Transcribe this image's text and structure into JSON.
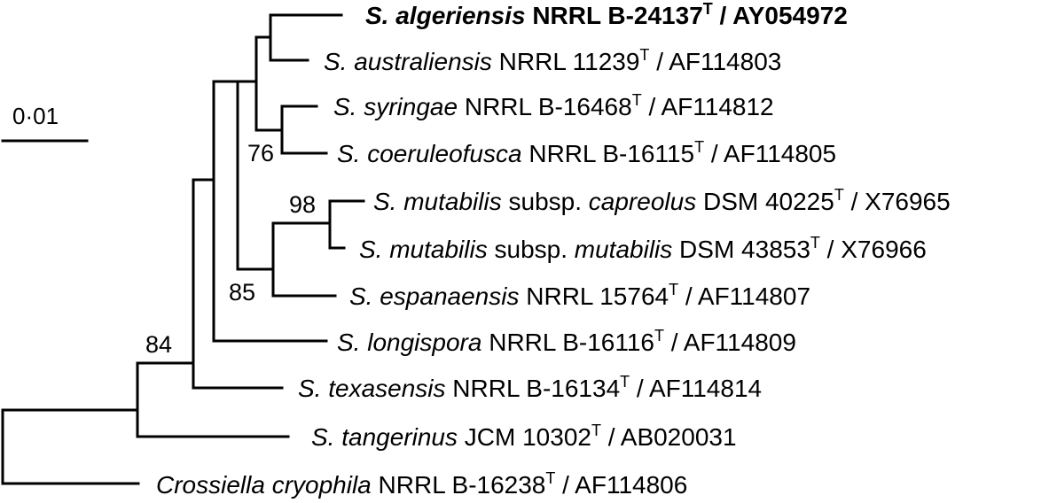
{
  "scale_bar": {
    "label": "0·01"
  },
  "leaves": [
    {
      "segments": [
        {
          "text": "S. algeriensis",
          "italic": true
        },
        {
          "text": " NRRL B-24137"
        },
        {
          "text": "T",
          "sup": true
        },
        {
          "text": " / AY054972"
        }
      ],
      "bold": true
    },
    {
      "segments": [
        {
          "text": "S. australiensis",
          "italic": true
        },
        {
          "text": " NRRL 11239"
        },
        {
          "text": "T",
          "sup": true
        },
        {
          "text": " / AF114803"
        }
      ]
    },
    {
      "segments": [
        {
          "text": "S. syringae",
          "italic": true
        },
        {
          "text": " NRRL B-16468"
        },
        {
          "text": "T",
          "sup": true
        },
        {
          "text": " / AF114812"
        }
      ]
    },
    {
      "segments": [
        {
          "text": "S. coeruleofusca",
          "italic": true
        },
        {
          "text": " NRRL B-16115"
        },
        {
          "text": "T",
          "sup": true
        },
        {
          "text": " / AF114805"
        }
      ]
    },
    {
      "segments": [
        {
          "text": "S. mutabilis",
          "italic": true
        },
        {
          "text": " subsp. "
        },
        {
          "text": "capreolus",
          "italic": true
        },
        {
          "text": " DSM 40225"
        },
        {
          "text": "T",
          "sup": true
        },
        {
          "text": " / X76965"
        }
      ]
    },
    {
      "segments": [
        {
          "text": "S. mutabilis",
          "italic": true
        },
        {
          "text": " subsp. "
        },
        {
          "text": "mutabilis",
          "italic": true
        },
        {
          "text": " DSM 43853"
        },
        {
          "text": "T",
          "sup": true
        },
        {
          "text": " / X76966"
        }
      ]
    },
    {
      "segments": [
        {
          "text": "S. espanaensis",
          "italic": true
        },
        {
          "text": " NRRL 15764"
        },
        {
          "text": "T",
          "sup": true
        },
        {
          "text": " / AF114807"
        }
      ]
    },
    {
      "segments": [
        {
          "text": "S. longispora",
          "italic": true
        },
        {
          "text": " NRRL B-16116"
        },
        {
          "text": "T",
          "sup": true
        },
        {
          "text": " / AF114809"
        }
      ]
    },
    {
      "segments": [
        {
          "text": "S. texasensis",
          "italic": true
        },
        {
          "text": " NRRL B-16134"
        },
        {
          "text": "T",
          "sup": true
        },
        {
          "text": " / AF114814"
        }
      ]
    },
    {
      "segments": [
        {
          "text": "S. tangerinus",
          "italic": true
        },
        {
          "text": " JCM 10302"
        },
        {
          "text": "T",
          "sup": true
        },
        {
          "text": " / AB020031"
        }
      ]
    },
    {
      "segments": [
        {
          "text": "Crossiella cryophila",
          "italic": true
        },
        {
          "text": " NRRL B-16238"
        },
        {
          "text": "T",
          "sup": true
        },
        {
          "text": " / AF114806"
        }
      ]
    }
  ],
  "bootstrap_values": [
    "76",
    "98",
    "85",
    "84"
  ]
}
